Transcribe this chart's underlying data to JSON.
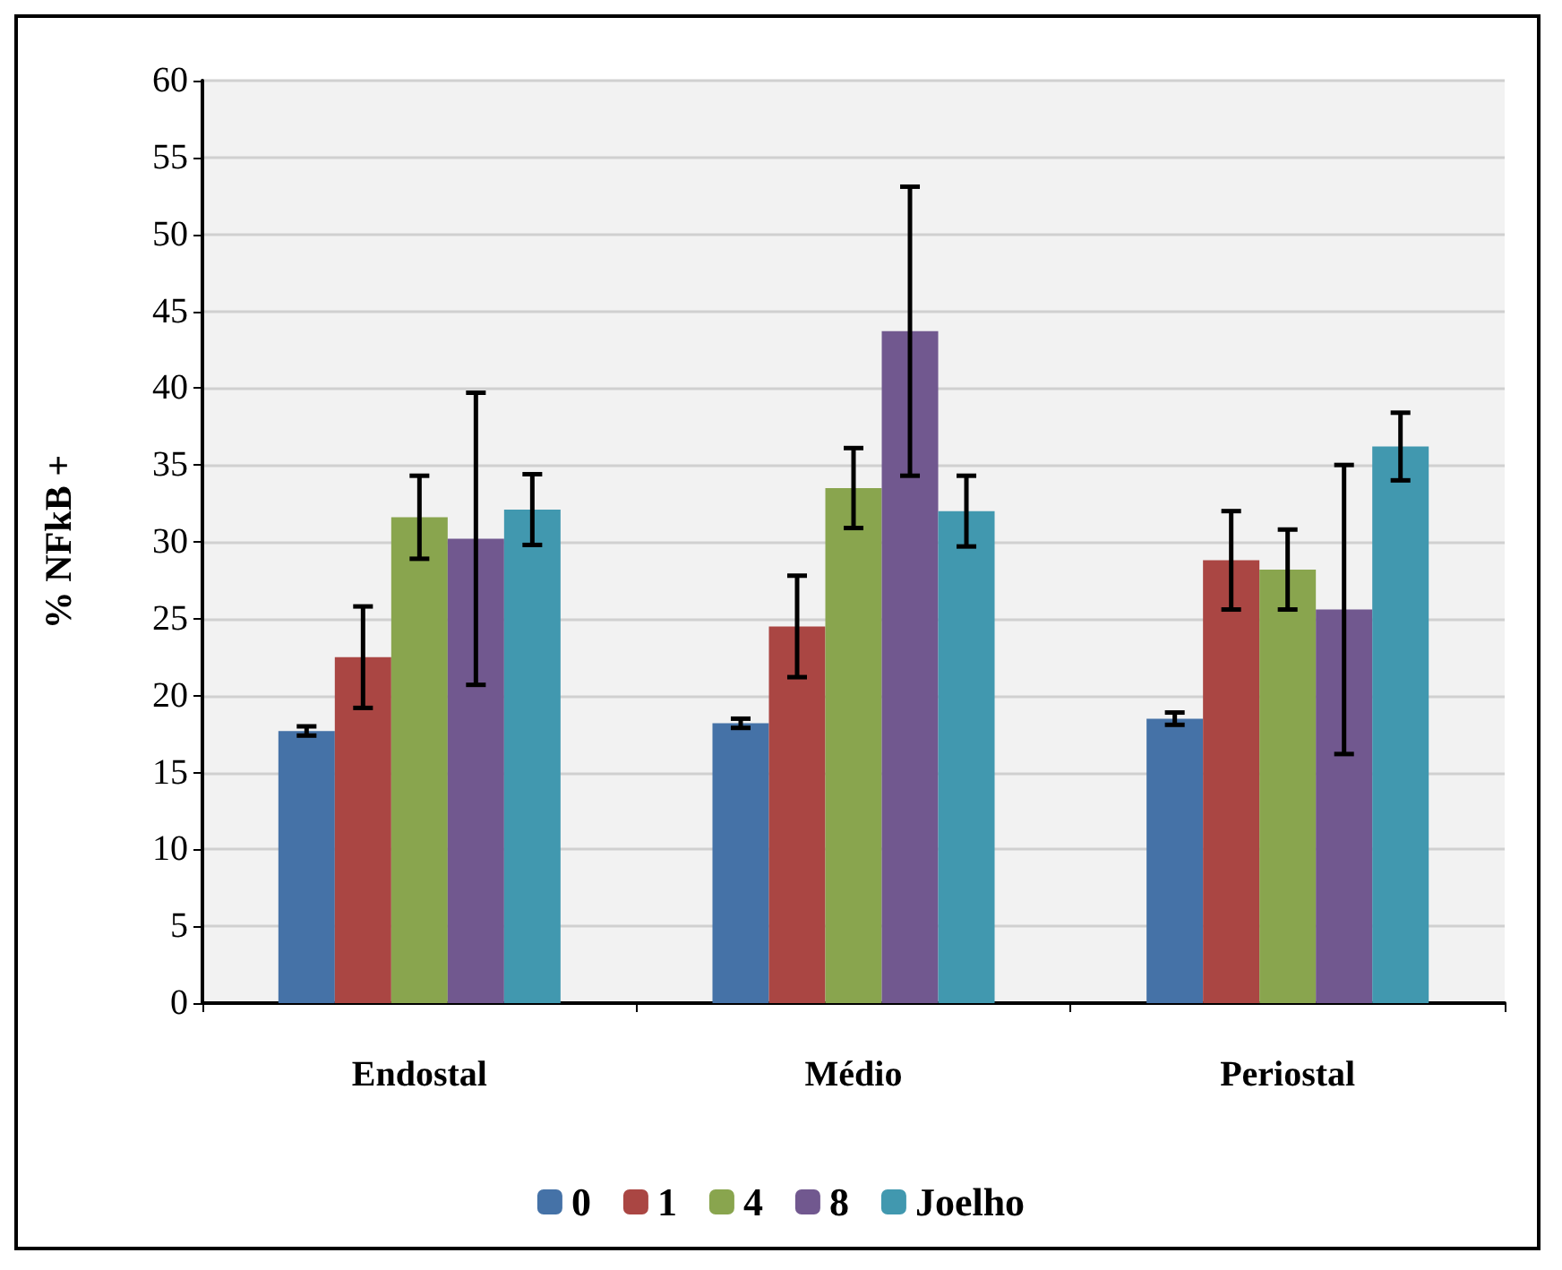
{
  "chart_data": {
    "type": "bar",
    "ylabel": "% NFkB +",
    "categories": [
      "Endostal",
      "Médio",
      "Periostal"
    ],
    "ylim": [
      0,
      60
    ],
    "yticks": [
      0,
      5,
      10,
      15,
      20,
      25,
      30,
      35,
      40,
      45,
      50,
      55,
      60
    ],
    "grid": "y",
    "legend": "bottom",
    "series": [
      {
        "name": "0",
        "color": "#4572a7",
        "values": [
          17.7,
          18.2,
          18.5
        ],
        "errors": [
          0.3,
          0.3,
          0.4
        ]
      },
      {
        "name": "1",
        "color": "#aa4643",
        "values": [
          22.5,
          24.5,
          28.8
        ],
        "errors": [
          3.3,
          3.3,
          3.2
        ]
      },
      {
        "name": "4",
        "color": "#89a54e",
        "values": [
          31.6,
          33.5,
          28.2
        ],
        "errors": [
          2.7,
          2.6,
          2.6
        ]
      },
      {
        "name": "8",
        "color": "#71588f",
        "values": [
          30.2,
          43.7,
          25.6
        ],
        "errors": [
          9.5,
          9.4,
          9.4
        ]
      },
      {
        "name": "Joelho",
        "color": "#4198af",
        "values": [
          32.1,
          32.0,
          36.2
        ],
        "errors": [
          2.3,
          2.3,
          2.2
        ]
      }
    ]
  }
}
